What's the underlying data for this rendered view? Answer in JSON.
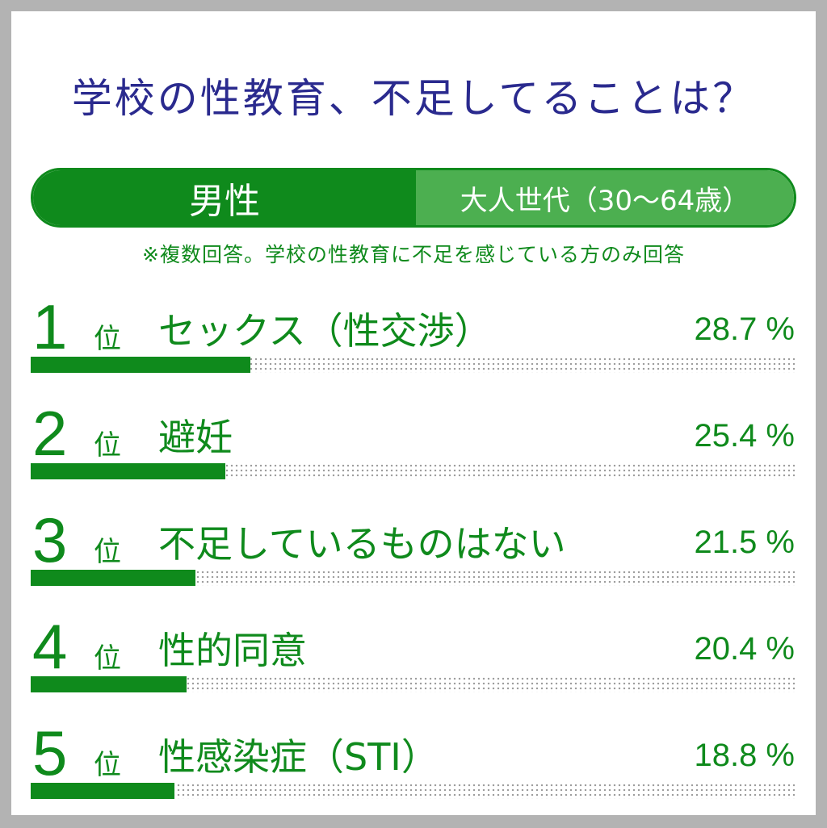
{
  "title": "学校の性教育、不足してることは？",
  "segment": {
    "gender": "男性",
    "generation": "大人世代（30〜64歳）"
  },
  "note": "※複数回答。学校の性教育に不足を感じている方のみ回答",
  "rank_suffix": "位",
  "colors": {
    "accent": "#0f8a1c",
    "accent_light": "#4caf50",
    "title": "#2a2a8e"
  },
  "chart_data": {
    "type": "bar",
    "orientation": "horizontal",
    "title": "学校の性教育、不足してることは？",
    "xlim": [
      0,
      100
    ],
    "unit": "%",
    "categories": [
      "セックス（性交渉）",
      "避妊",
      "不足しているものはない",
      "性的同意",
      "性感染症（STI）"
    ],
    "values": [
      28.7,
      25.4,
      21.5,
      20.4,
      18.8
    ],
    "ranks": [
      "1",
      "2",
      "3",
      "4",
      "5"
    ],
    "value_labels": [
      "28.7 %",
      "25.4 %",
      "21.5 %",
      "20.4 %",
      "18.8 %"
    ]
  }
}
